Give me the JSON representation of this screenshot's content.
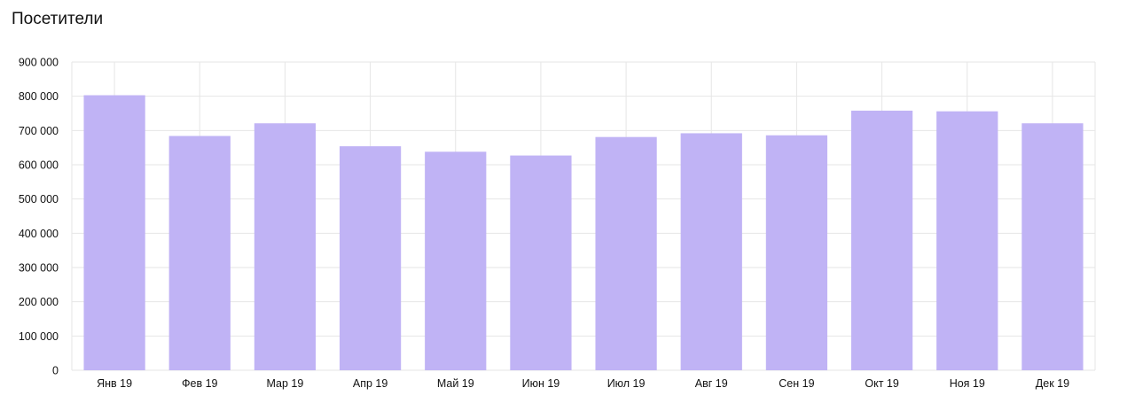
{
  "chart_data": {
    "type": "bar",
    "title": "Посетители",
    "xlabel": "",
    "ylabel": "",
    "categories": [
      "Янв 19",
      "Фев 19",
      "Мар 19",
      "Апр 19",
      "Май 19",
      "Июн 19",
      "Июл 19",
      "Авг 19",
      "Сен 19",
      "Окт 19",
      "Ноя 19",
      "Дек 19"
    ],
    "values": [
      803000,
      684000,
      721000,
      654000,
      638000,
      627000,
      681000,
      692000,
      686000,
      758000,
      756000,
      721000
    ],
    "ylim": [
      0,
      900000
    ],
    "yticks": [
      0,
      100000,
      200000,
      300000,
      400000,
      500000,
      600000,
      700000,
      800000,
      900000
    ],
    "ytick_labels": [
      "0",
      "100 000",
      "200 000",
      "300 000",
      "400 000",
      "500 000",
      "600 000",
      "700 000",
      "800 000",
      "900 000"
    ],
    "grid": true,
    "bar_color": "#c0b3f5",
    "grid_color": "#e6e6e6"
  }
}
